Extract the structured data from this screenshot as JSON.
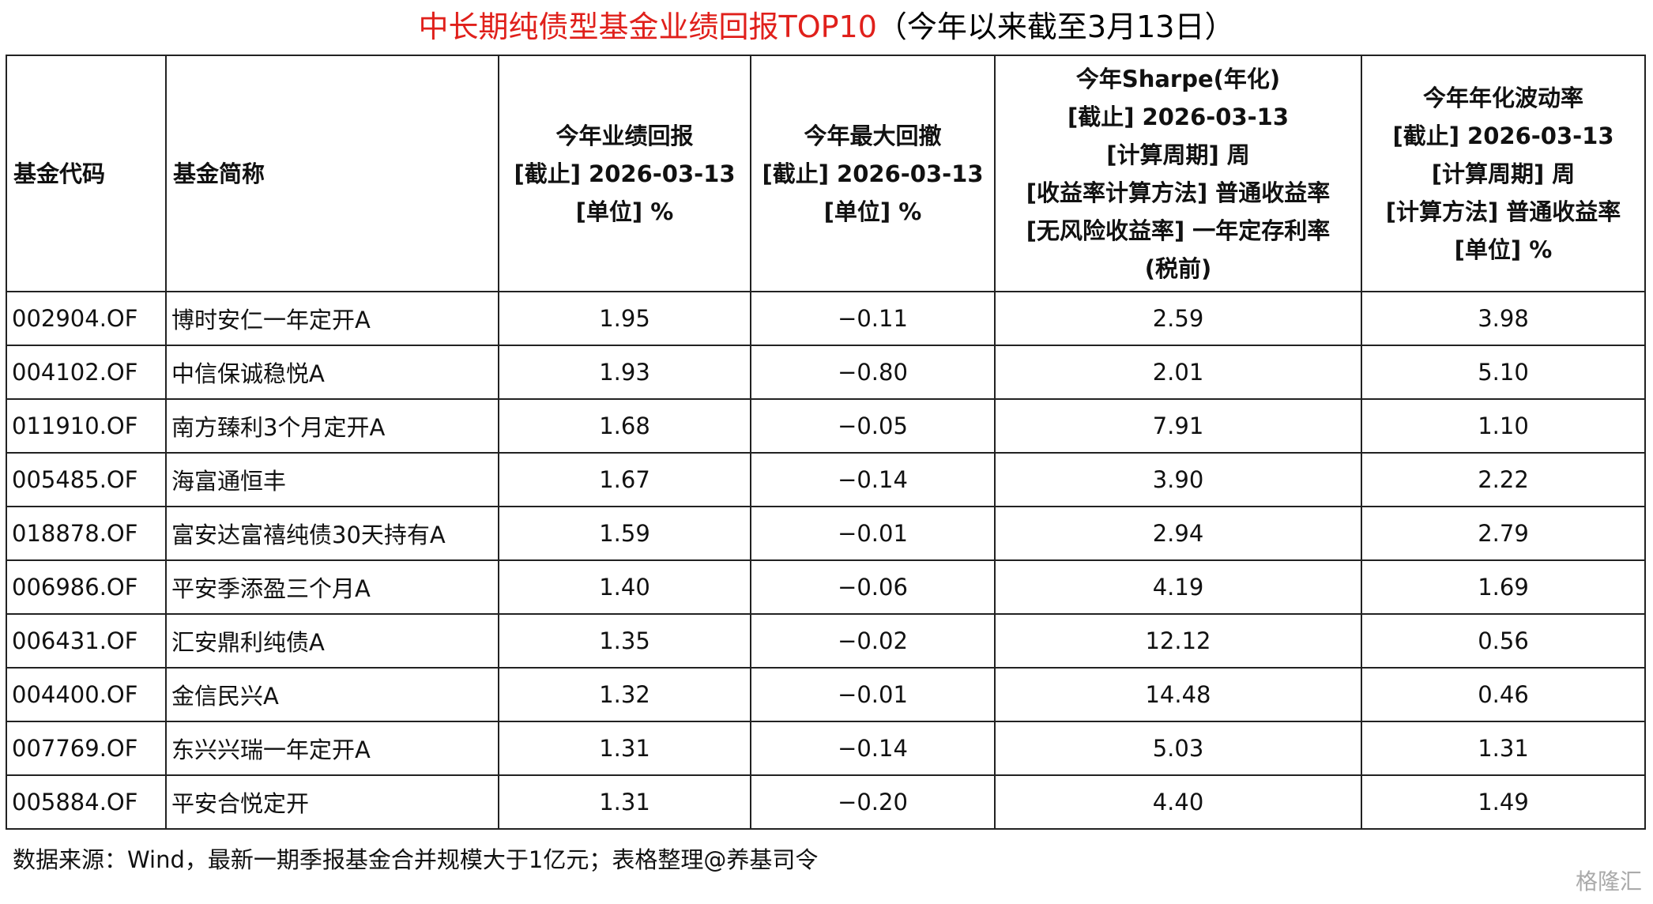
{
  "title": {
    "main": "中长期纯债型基金业绩回报TOP10",
    "note": "（今年以来截至3月13日）"
  },
  "table": {
    "header": [
      [
        "基金代码"
      ],
      [
        "基金简称"
      ],
      [
        "今年业绩回报",
        "[截止] 2026-03-13",
        "[单位] %"
      ],
      [
        "今年最大回撤",
        "[截止] 2026-03-13",
        "[单位] %"
      ],
      [
        "今年Sharpe(年化)",
        "[截止] 2026-03-13",
        "[计算周期] 周",
        "[收益率计算方法] 普通收益率",
        "[无风险收益率] 一年定存利率",
        "(税前)"
      ],
      [
        "今年年化波动率",
        "[截止] 2026-03-13",
        "[计算周期] 周",
        "[计算方法] 普通收益率",
        "[单位] %"
      ]
    ],
    "rows": [
      [
        "002904.OF",
        "博时安仁一年定开A",
        "1.95",
        "−0.11",
        "2.59",
        "3.98"
      ],
      [
        "004102.OF",
        "中信保诚稳悦A",
        "1.93",
        "−0.80",
        "2.01",
        "5.10"
      ],
      [
        "011910.OF",
        "南方臻利3个月定开A",
        "1.68",
        "−0.05",
        "7.91",
        "1.10"
      ],
      [
        "005485.OF",
        "海富通恒丰",
        "1.67",
        "−0.14",
        "3.90",
        "2.22"
      ],
      [
        "018878.OF",
        "富安达富禧纯债30天持有A",
        "1.59",
        "−0.01",
        "2.94",
        "2.79"
      ],
      [
        "006986.OF",
        "平安季添盈三个月A",
        "1.40",
        "−0.06",
        "4.19",
        "1.69"
      ],
      [
        "006431.OF",
        "汇安鼎利纯债A",
        "1.35",
        "−0.02",
        "12.12",
        "0.56"
      ],
      [
        "004400.OF",
        "金信民兴A",
        "1.32",
        "−0.01",
        "14.48",
        "0.46"
      ],
      [
        "007769.OF",
        "东兴兴瑞一年定开A",
        "1.31",
        "−0.14",
        "5.03",
        "1.31"
      ],
      [
        "005884.OF",
        "平安合悦定开",
        "1.31",
        "−0.20",
        "4.40",
        "1.49"
      ]
    ],
    "footer": "数据来源：Wind，最新一期季报基金合并规模大于1亿元；表格整理@养基司令"
  },
  "watermark": "格隆汇"
}
